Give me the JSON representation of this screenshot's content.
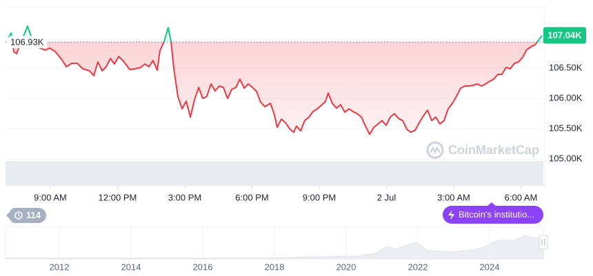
{
  "chart_data": {
    "type": "line",
    "x": [
      7.12,
      7.25,
      7.37,
      7.49,
      7.68,
      7.86,
      7.98,
      8.11,
      8.29,
      8.54,
      8.78,
      8.97,
      9.22,
      9.52,
      9.71,
      9.95,
      10.2,
      10.45,
      10.75,
      10.94,
      11.12,
      11.31,
      11.49,
      11.68,
      11.86,
      12.05,
      12.29,
      12.54,
      12.78,
      13.03,
      13.22,
      13.4,
      13.58,
      13.77,
      13.89,
      14.08,
      14.26,
      14.38,
      14.51,
      14.69,
      14.88,
      15.06,
      15.25,
      15.43,
      15.62,
      15.8,
      15.98,
      16.17,
      16.35,
      16.54,
      16.72,
      16.91,
      17.09,
      17.28,
      17.46,
      17.65,
      17.83,
      18.02,
      18.2,
      18.38,
      18.57,
      18.82,
      19,
      19.12,
      19.31,
      19.49,
      19.68,
      19.86,
      19.98,
      20.17,
      20.35,
      20.54,
      20.72,
      20.91,
      21.09,
      21.28,
      21.4,
      21.58,
      21.77,
      21.95,
      22.14,
      22.32,
      22.51,
      22.69,
      22.88,
      23.06,
      23.25,
      23.43,
      23.62,
      23.8,
      23.98,
      24.17,
      24.35,
      24.54,
      24.72,
      24.91,
      25.09,
      25.28,
      25.46,
      25.65,
      25.83,
      26.02,
      26.2,
      26.38,
      26.57,
      26.75,
      26.94,
      27.12,
      27.31,
      27.49,
      27.68,
      27.86,
      28.05,
      28.23,
      28.42,
      28.6,
      28.78,
      28.97,
      29.15,
      29.34,
      29.52,
      29.71,
      29.89,
      30.08,
      30.26,
      30.45,
      30.63,
      30.75,
      30.94
    ],
    "values": [
      107000,
      107080,
      106773,
      106739,
      106920,
      107080,
      107193,
      107057,
      106886,
      106830,
      106795,
      106830,
      106773,
      106636,
      106523,
      106580,
      106580,
      106489,
      106455,
      106375,
      106602,
      106455,
      106523,
      106659,
      106568,
      106693,
      106602,
      106477,
      106489,
      106511,
      106568,
      106523,
      106625,
      106466,
      106784,
      106943,
      107170,
      106943,
      106489,
      106034,
      105830,
      105955,
      105693,
      105977,
      106182,
      106000,
      106034,
      106239,
      106125,
      106205,
      106182,
      106000,
      106148,
      106182,
      106318,
      106170,
      106239,
      106182,
      106114,
      105943,
      105864,
      105920,
      105727,
      105523,
      105659,
      105602,
      105500,
      105443,
      105545,
      105466,
      105636,
      105693,
      105784,
      105830,
      105886,
      105955,
      106091,
      105920,
      105841,
      105898,
      105773,
      105830,
      105784,
      105750,
      105693,
      105545,
      105409,
      105523,
      105580,
      105636,
      105557,
      105693,
      105750,
      105670,
      105636,
      105489,
      105443,
      105477,
      105602,
      105716,
      105807,
      105636,
      105693,
      105580,
      105636,
      105830,
      105920,
      106034,
      106170,
      106205,
      106205,
      106216,
      106239,
      106205,
      106239,
      106284,
      106318,
      106398,
      106398,
      106511,
      106489,
      106580,
      106602,
      106682,
      106807,
      106852,
      106886,
      106943,
      107040
    ],
    "color": "#ea3943",
    "color_above": "#16c784",
    "xlim": [
      7,
      31
    ],
    "xticks": [
      {
        "value": 9,
        "label": "9:00 AM"
      },
      {
        "value": 12,
        "label": "12:00 PM"
      },
      {
        "value": 15,
        "label": "3:00 PM"
      },
      {
        "value": 18,
        "label": "6:00 PM"
      },
      {
        "value": 21,
        "label": "9:00 PM"
      },
      {
        "value": 24,
        "label": "2 Jul"
      },
      {
        "value": 27,
        "label": "3:00 AM"
      },
      {
        "value": 30,
        "label": "6:00 AM"
      }
    ],
    "ylim": [
      104560,
      107510
    ],
    "yticks": [
      {
        "value": 105000,
        "label": "105.00K"
      },
      {
        "value": 105500,
        "label": "105.50K"
      },
      {
        "value": 106000,
        "label": "106.00K"
      },
      {
        "value": 106500,
        "label": "106.50K"
      }
    ],
    "grid": true,
    "reference_line": {
      "value": 106930,
      "label": "106.93K"
    },
    "last_price": {
      "value": 107040,
      "label": "107.04K"
    },
    "watermark": "CoinMarketCap",
    "history_count": 114,
    "news": "Bitcoin's institutio...",
    "navigator": {
      "xlim": [
        2010.5,
        2025.5
      ],
      "xticks": [
        2012,
        2014,
        2016,
        2018,
        2020,
        2022,
        2024
      ]
    }
  }
}
